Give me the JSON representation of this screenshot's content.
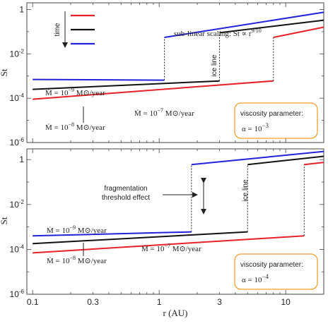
{
  "chart_data": [
    {
      "type": "line",
      "panel": "top",
      "xscale": "log",
      "yscale": "log",
      "xlim": [
        0.09,
        20
      ],
      "ylim": [
        1e-06,
        2
      ],
      "ylabel": "St",
      "x_ticks": [
        "0.1",
        "0.3",
        "1",
        "3",
        "10"
      ],
      "y_ticks": [
        "1",
        "10^-2",
        "10^-4",
        "10^-6"
      ],
      "series": [
        {
          "color": "#e8202a",
          "segments": [
            [
              [
                0.1,
                9e-05
              ],
              [
                8,
                0.0006
              ]
            ],
            [
              [
                8,
                0.055
              ],
              [
                20,
                0.16
              ]
            ]
          ]
        },
        {
          "color": "#111111",
          "segments": [
            [
              [
                0.1,
                0.00025
              ],
              [
                3,
                0.0006
              ]
            ],
            [
              [
                3,
                0.09
              ],
              [
                20,
                0.33
              ]
            ]
          ]
        },
        {
          "color": "#2222dd",
          "segments": [
            [
              [
                0.1,
                0.0007
              ],
              [
                1.1,
                0.00065
              ]
            ],
            [
              [
                1.1,
                0.055
              ],
              [
                20,
                0.75
              ]
            ]
          ]
        }
      ],
      "jumps": [
        1.1,
        3,
        8
      ],
      "legend_arrow_label": "time",
      "annotations": {
        "sublinear": "sub-linear scaling: St ∝ r",
        "sublinear_exp": "9/10",
        "iceline": "ice line",
        "mdot_blue": "Ṁ = 10",
        "mdot_blue_exp": "−9",
        "mdot_black": "Ṁ = 10",
        "mdot_black_exp": "−8",
        "mdot_red": "Ṁ = 10",
        "mdot_red_exp": "−7",
        "mdot_units": "M⊙/year",
        "viscosity_label": "viscosity parameter:",
        "alpha": "α = 10",
        "alpha_exp": "−3"
      }
    },
    {
      "type": "line",
      "panel": "bottom",
      "xscale": "log",
      "yscale": "log",
      "xlim": [
        0.09,
        20
      ],
      "ylim": [
        1e-06,
        3
      ],
      "xlabel": "r (AU)",
      "ylabel": "St",
      "x_ticks": [
        "0.1",
        "0.3",
        "1",
        "3",
        "10"
      ],
      "y_ticks": [
        "1",
        "10^-2",
        "10^-4",
        "10^-6"
      ],
      "series": [
        {
          "color": "#e8202a",
          "segments": [
            [
              [
                0.1,
                7e-05
              ],
              [
                14,
                0.0004
              ]
            ],
            [
              [
                14,
                0.6
              ],
              [
                20,
                0.75
              ]
            ]
          ]
        },
        {
          "color": "#111111",
          "segments": [
            [
              [
                0.1,
                0.00018
              ],
              [
                5,
                0.0006
              ]
            ],
            [
              [
                5,
                0.6
              ],
              [
                20,
                1.4
              ]
            ]
          ]
        },
        {
          "color": "#2222dd",
          "segments": [
            [
              [
                0.1,
                0.0004
              ],
              [
                1.8,
                0.0006
              ]
            ],
            [
              [
                1.8,
                0.6
              ],
              [
                20,
                2.3
              ]
            ]
          ]
        }
      ],
      "jumps": [
        1.8,
        5,
        14
      ],
      "annotations": {
        "fragmentation": "fragmentation",
        "fragmentation2": "threshold effect",
        "iceline": "ice line",
        "mdot_blue": "Ṁ = 10",
        "mdot_blue_exp": "−9",
        "mdot_black": "Ṁ = 10",
        "mdot_black_exp": "−8",
        "mdot_red": "Ṁ = 10",
        "mdot_red_exp": "−7",
        "mdot_units": "M⊙/year",
        "viscosity_label": "viscosity parameter:",
        "alpha": "α = 10",
        "alpha_exp": "−4"
      }
    }
  ]
}
